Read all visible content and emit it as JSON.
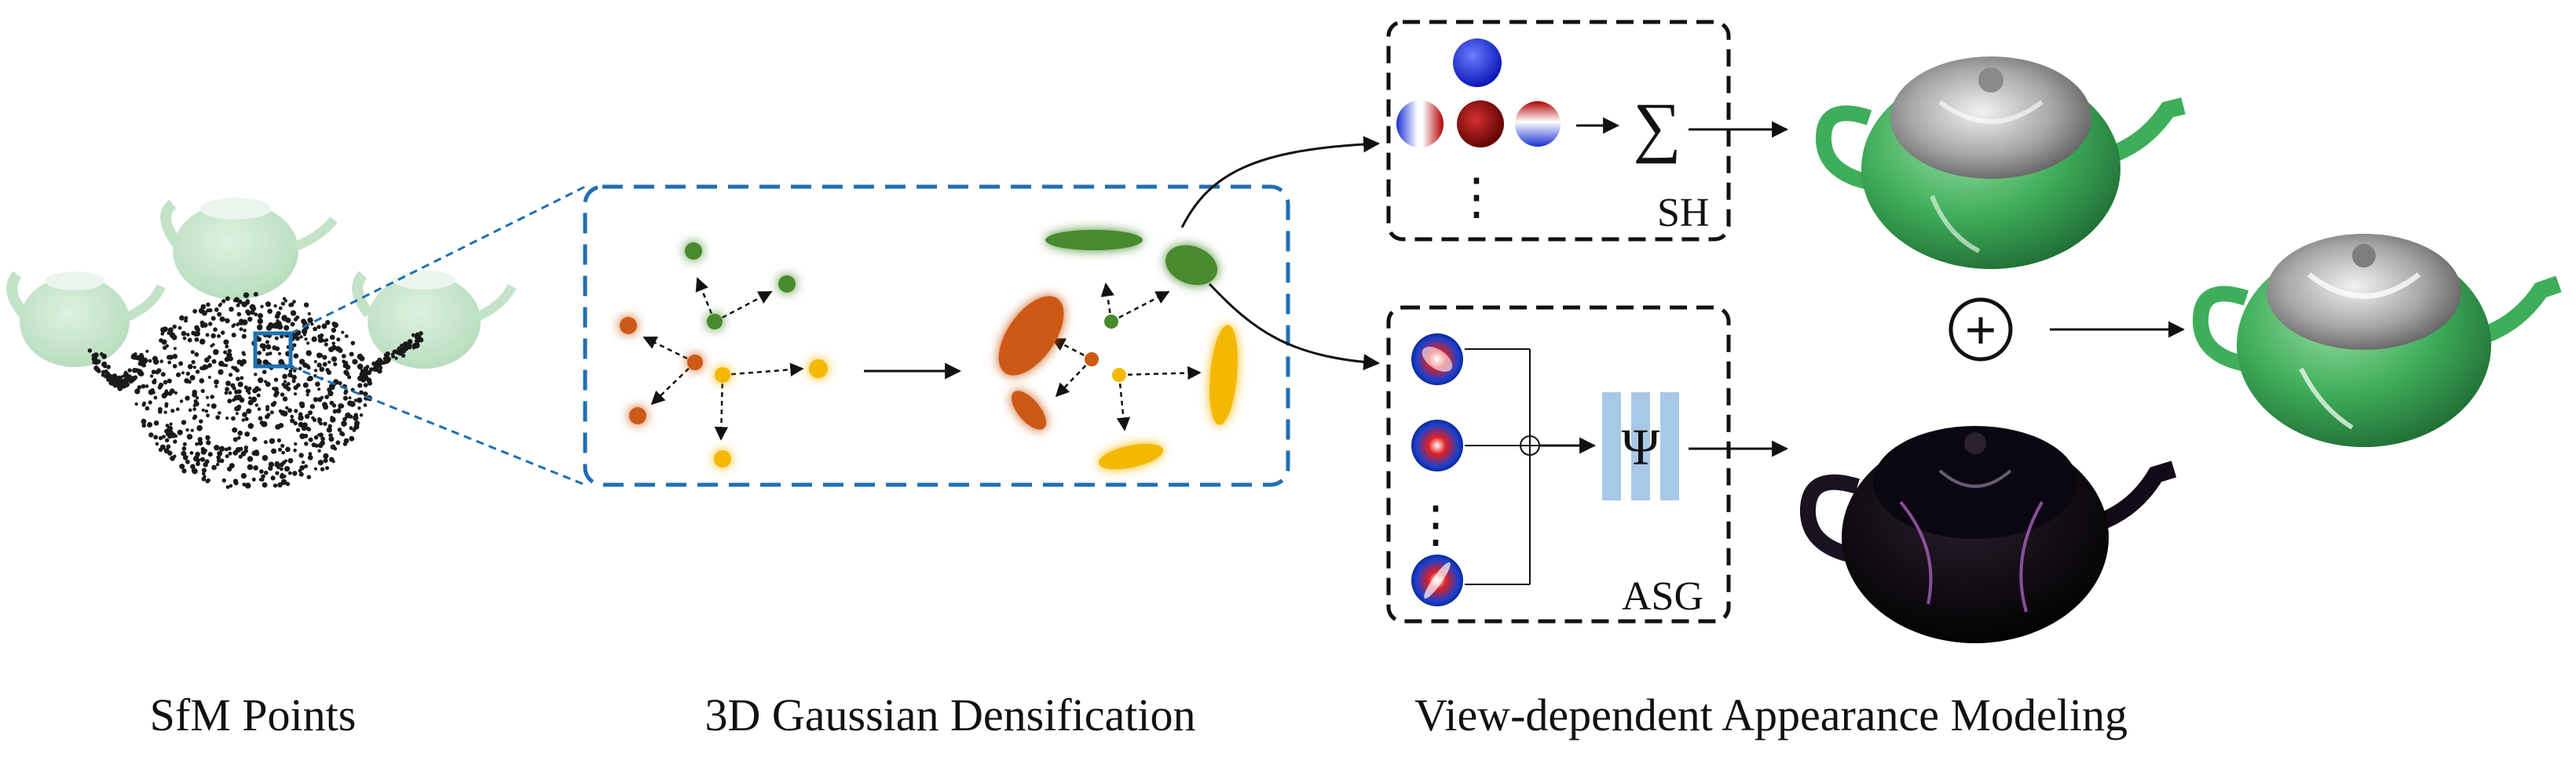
{
  "captions": {
    "sfm": "SfM Points",
    "densification": "3D Gaussian Densification",
    "appearance": "View-dependent Appearance Modeling"
  },
  "labels": {
    "sh": "SH",
    "asg": "ASG",
    "sum": "∑",
    "psi": "Ψ",
    "plus": "+",
    "dots": "⋮"
  },
  "colors": {
    "blue_dashed": "#1f6fb2",
    "teapot_green": "#3fae5a",
    "gaussian_green": "#4a8a2e",
    "gaussian_orange": "#cc5a14",
    "gaussian_yellow": "#f5b800",
    "psi_block": "#a8c8e8"
  }
}
